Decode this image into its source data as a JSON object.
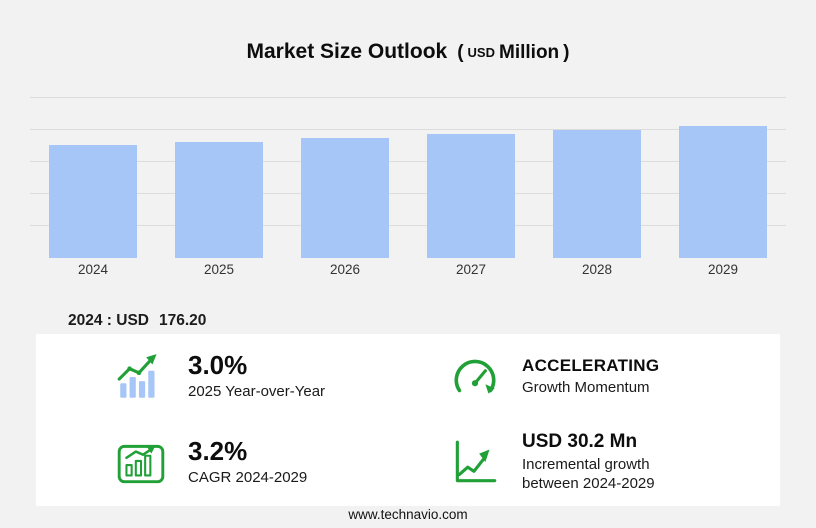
{
  "title": {
    "main": "Market Size Outlook",
    "paren_open": "(",
    "unit_currency": "USD",
    "unit_scale": "Million",
    "paren_close": ")"
  },
  "chart_data": {
    "type": "bar",
    "title": "Market Size Outlook (USD Million)",
    "categories": [
      "2024",
      "2025",
      "2026",
      "2027",
      "2028",
      "2029"
    ],
    "values": [
      176.2,
      181.5,
      187.3,
      193.3,
      199.4,
      206.4
    ],
    "xlabel": "",
    "ylabel": "",
    "ylim": [
      0,
      250
    ],
    "gridline_values": [
      50,
      100,
      150,
      200,
      250
    ],
    "grid": "horizontal-faint",
    "legend": "none",
    "bar_color": "#a6c6f7"
  },
  "base_year": {
    "prefix": "2024 : USD",
    "value": "176.20"
  },
  "stats": {
    "yoy": {
      "value": "3.0%",
      "label": "2025 Year-over-Year"
    },
    "momentum": {
      "value": "ACCELERATING",
      "label": "Growth Momentum"
    },
    "cagr": {
      "value": "3.2%",
      "label": "CAGR 2024-2029"
    },
    "incremental": {
      "value": "USD 30.2 Mn",
      "label_line1": "Incremental growth",
      "label_line2": "between 2024-2029"
    }
  },
  "footer": {
    "url": "www.technavio.com"
  },
  "colors": {
    "accent_green": "#21a038",
    "bar_blue": "#a6c6f7",
    "background": "#f2f2f2",
    "panel": "#ffffff"
  }
}
